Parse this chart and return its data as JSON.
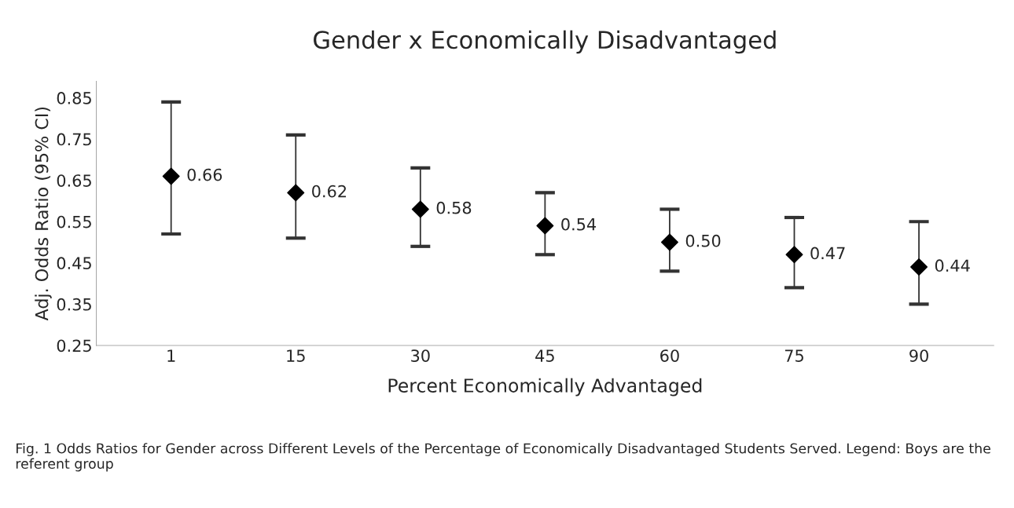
{
  "chart_data": {
    "type": "scatter",
    "title": "Gender x Economically Disadvantaged",
    "xlabel": "Percent Economically Advantaged",
    "ylabel": "Adj. Odds Ratio (95% CI)",
    "categories": [
      "1",
      "15",
      "30",
      "45",
      "60",
      "75",
      "90"
    ],
    "series": [
      {
        "color": "#000000",
        "values": [
          0.66,
          0.62,
          0.58,
          0.54,
          0.5,
          0.47,
          0.44
        ],
        "value_labels": [
          "0.66",
          "0.62",
          "0.58",
          "0.54",
          "0.50",
          "0.47",
          "0.44"
        ],
        "errors": [
          [
            0.52,
            0.84
          ],
          [
            0.51,
            0.76
          ],
          [
            0.49,
            0.68
          ],
          [
            0.47,
            0.62
          ],
          [
            0.43,
            0.58
          ],
          [
            0.39,
            0.56
          ],
          [
            0.35,
            0.55
          ]
        ]
      }
    ],
    "marker": "diamond",
    "ylim": [
      0.25,
      0.89
    ],
    "yticks": [
      {
        "value": 0.25,
        "label": "0.25"
      },
      {
        "value": 0.35,
        "label": "0.35"
      },
      {
        "value": 0.45,
        "label": "0.45"
      },
      {
        "value": 0.55,
        "label": "0.55"
      },
      {
        "value": 0.65,
        "label": "0.65"
      },
      {
        "value": 0.75,
        "label": "0.75"
      },
      {
        "value": 0.85,
        "label": "0.85"
      }
    ],
    "grid": false,
    "legend": false,
    "annotations": [
      "Fig. 1 Odds Ratios for Gender across Different Levels of the Percentage of Economically Disadvantaged Students Served. Legend: Boys are the referent group"
    ]
  }
}
